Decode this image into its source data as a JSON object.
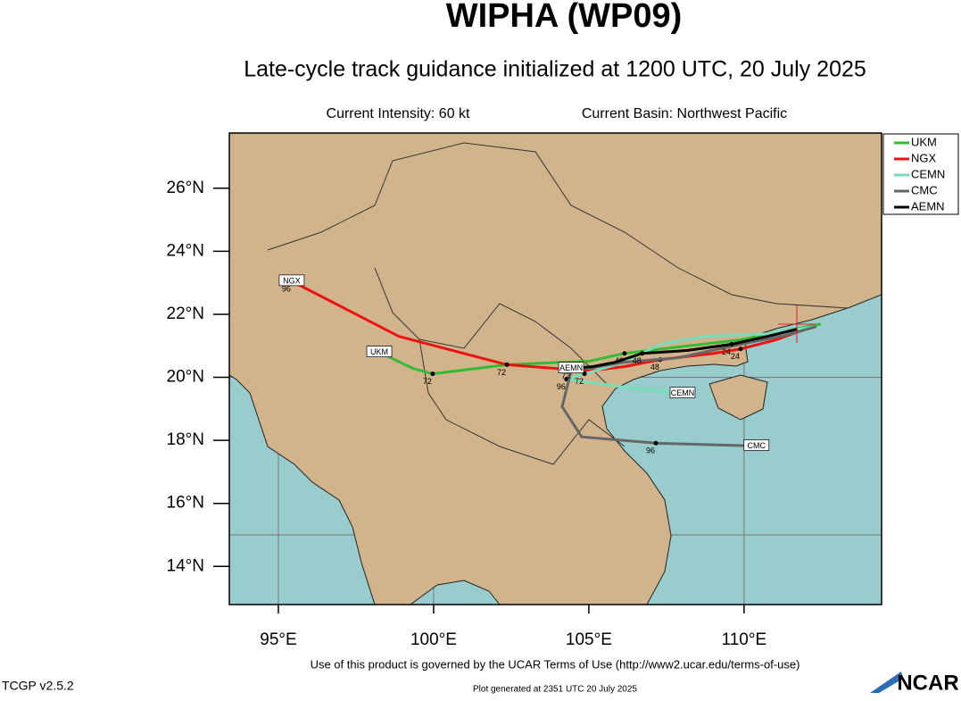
{
  "header": {
    "title": "WIPHA (WP09)",
    "subtitle": "Late-cycle track guidance initialized at 1200 UTC, 20 July 2025",
    "intensity": "Current Intensity: 60 kt",
    "basin": "Current Basin: Northwest Pacific"
  },
  "map": {
    "type": "track-map",
    "xlim": [
      93.42,
      114.43
    ],
    "ylim": [
      12.79,
      27.75
    ],
    "xticks": [
      {
        "value": 95,
        "label": "95°E"
      },
      {
        "value": 100,
        "label": "100°E"
      },
      {
        "value": 105,
        "label": "105°E"
      },
      {
        "value": 110,
        "label": "110°E"
      }
    ],
    "yticks": [
      {
        "value": 14,
        "label": "14°N"
      },
      {
        "value": 16,
        "label": "16°N"
      },
      {
        "value": 18,
        "label": "18°N"
      },
      {
        "value": 20,
        "label": "20°N"
      },
      {
        "value": 22,
        "label": "22°N"
      },
      {
        "value": 24,
        "label": "24°N"
      },
      {
        "value": 26,
        "label": "26°N"
      }
    ],
    "grid_lon": [
      95,
      100,
      105,
      110
    ],
    "grid_lat": [
      15,
      20,
      25
    ],
    "tracks": [
      {
        "name": "UKM",
        "color": "#33bb33",
        "x": [
          112.47,
          109.89,
          107.87,
          106.15,
          105.0,
          102.36,
          99.97,
          99.34,
          98.25
        ],
        "y": [
          21.69,
          21.19,
          20.96,
          20.76,
          20.51,
          20.4,
          20.11,
          20.28,
          20.79
        ],
        "hours": [
          null,
          null,
          null,
          48,
          null,
          null,
          72,
          null,
          null
        ]
      },
      {
        "name": "NGX",
        "color": "#ee1111",
        "x": [
          111.98,
          111.03,
          109.89,
          109.02,
          107.3,
          106.15,
          105.0,
          102.36,
          98.88,
          95.43
        ],
        "y": [
          21.53,
          21.19,
          20.9,
          20.76,
          20.56,
          20.34,
          20.2,
          20.4,
          21.3,
          23.05
        ],
        "hours": [
          null,
          null,
          24,
          null,
          48,
          null,
          null,
          72,
          null,
          96
        ]
      },
      {
        "name": "CEMN",
        "color": "#77ddbb",
        "x": [
          112.33,
          110.75,
          108.74,
          107.3,
          106.15,
          104.86,
          104.28,
          106.15,
          108.02
        ],
        "y": [
          21.61,
          21.38,
          21.3,
          21.05,
          20.48,
          20.11,
          19.94,
          19.69,
          19.49
        ],
        "hours": [
          null,
          null,
          null,
          null,
          null,
          72,
          96,
          null,
          null
        ]
      },
      {
        "name": "CMC",
        "color": "#666666",
        "x": [
          112.33,
          111.32,
          109.89,
          107.87,
          106.15,
          104.43,
          104.14,
          104.77,
          107.16,
          110.4
        ],
        "y": [
          21.61,
          21.33,
          21.05,
          20.62,
          20.48,
          20.2,
          19.07,
          18.11,
          17.91,
          17.82
        ],
        "hours": [
          null,
          null,
          null,
          null,
          null,
          null,
          null,
          null,
          96,
          null
        ]
      },
      {
        "name": "AEMN",
        "color": "#000000",
        "x": [
          111.72,
          110.75,
          109.6,
          108.16,
          106.72,
          105.86,
          105.14,
          104.43
        ],
        "y": [
          21.53,
          21.3,
          21.05,
          20.85,
          20.76,
          20.48,
          20.34,
          20.28
        ],
        "hours": [
          null,
          null,
          24,
          null,
          48,
          null,
          null,
          72
        ]
      }
    ]
  },
  "footer": {
    "terms": "Use of this product is governed by the UCAR Terms of Use (http://www2.ucar.edu/terms-of-use)",
    "version": "TCGP v2.5.2",
    "generated": "Plot generated at 2351 UTC   20 July 2025",
    "logo": "NCAR"
  }
}
